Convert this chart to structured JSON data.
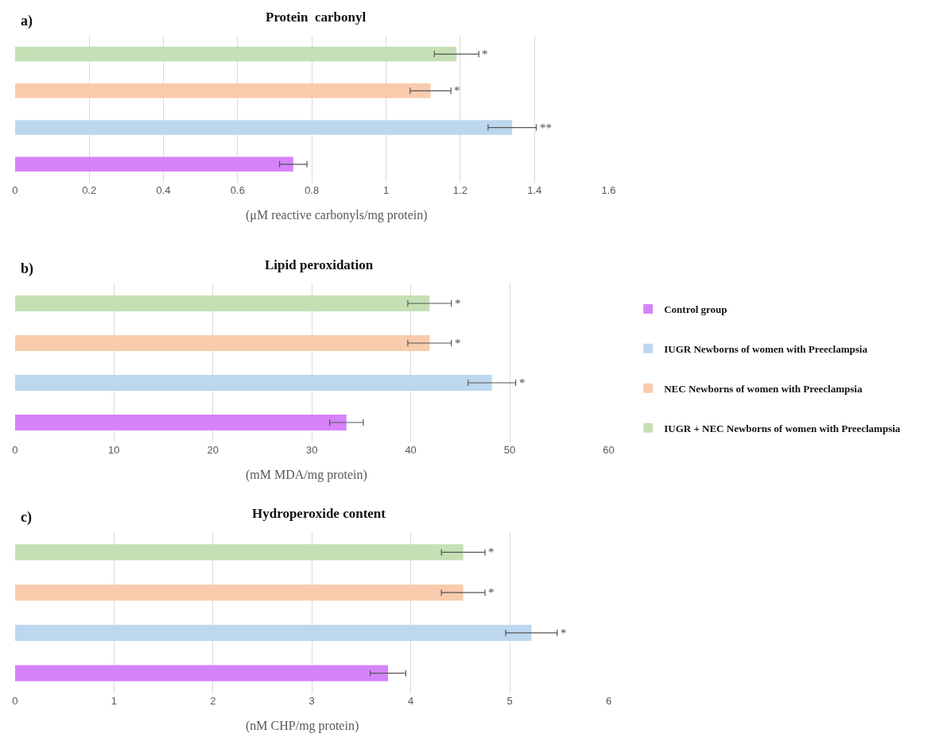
{
  "chart_data": [
    {
      "type": "bar",
      "orientation": "horizontal",
      "title": "Protein  carbonyl",
      "xlabel": "(μM reactive carbonyls/mg protein)",
      "annotations": [
        "a)"
      ],
      "categories": [
        null,
        null,
        null,
        null
      ],
      "xlim": [
        0,
        1.6
      ],
      "xticks": [
        0,
        0.2,
        0.4,
        0.6,
        0.8,
        1,
        1.2,
        1.4,
        1.6
      ],
      "grid": "x",
      "legend": "right",
      "tick_labels": "x",
      "series": [
        {
          "name": "Control group",
          "color": "#d683fa",
          "values": [
            null,
            null,
            null,
            0.75
          ],
          "errors": [
            null,
            null,
            null,
            0.037
          ],
          "value_labels": [
            null,
            null,
            null,
            null
          ]
        },
        {
          "name": "IUGR Newborns of women with Preeclampsia",
          "color": "#bdd7ee",
          "values": [
            null,
            null,
            1.34,
            null
          ],
          "errors": [
            null,
            null,
            0.065,
            null
          ],
          "value_labels": [
            null,
            null,
            "**",
            null
          ]
        },
        {
          "name": "NEC Newborns of women with Preeclampsia",
          "color": "#f8cbad",
          "values": [
            null,
            1.12,
            null,
            null
          ],
          "errors": [
            null,
            0.055,
            null,
            null
          ],
          "value_labels": [
            null,
            "*",
            null,
            null
          ]
        },
        {
          "name": "IUGR + NEC Newborns of women with Preeclampsia",
          "color": "#c5e0b4",
          "values": [
            1.19,
            null,
            null,
            null
          ],
          "errors": [
            0.06,
            null,
            null,
            null
          ],
          "value_labels": [
            "*",
            null,
            null,
            null
          ]
        }
      ]
    },
    {
      "type": "bar",
      "orientation": "horizontal",
      "title": "Lipid peroxidation",
      "xlabel": "(mM MDA/mg protein)",
      "annotations": [
        "b)"
      ],
      "categories": [
        null,
        null,
        null,
        null
      ],
      "xlim": [
        0,
        60
      ],
      "xticks": [
        0,
        10,
        20,
        30,
        40,
        50,
        60
      ],
      "grid": "x",
      "legend": false,
      "tick_labels": "x",
      "series": [
        {
          "color": "#d683fa",
          "values": [
            null,
            null,
            null,
            33.5
          ],
          "errors": [
            null,
            null,
            null,
            1.7
          ],
          "value_labels": [
            null,
            null,
            null,
            null
          ]
        },
        {
          "color": "#bdd7ee",
          "values": [
            null,
            null,
            48.2,
            null
          ],
          "errors": [
            null,
            null,
            2.4,
            null
          ],
          "value_labels": [
            null,
            null,
            "*",
            null
          ]
        },
        {
          "color": "#f8cbad",
          "values": [
            null,
            41.9,
            null,
            null
          ],
          "errors": [
            null,
            2.2,
            null,
            null
          ],
          "value_labels": [
            null,
            "*",
            null,
            null
          ]
        },
        {
          "color": "#c5e0b4",
          "values": [
            41.9,
            null,
            null,
            null
          ],
          "errors": [
            2.2,
            null,
            null,
            null
          ],
          "value_labels": [
            "*",
            null,
            null,
            null
          ]
        }
      ]
    },
    {
      "type": "bar",
      "orientation": "horizontal",
      "title": "Hydroperoxide content",
      "xlabel": "(nM CHP/mg protein)",
      "annotations": [
        "c)"
      ],
      "categories": [
        null,
        null,
        null,
        null
      ],
      "xlim": [
        0,
        6
      ],
      "xticks": [
        0,
        1,
        2,
        3,
        4,
        5,
        6
      ],
      "grid": "x",
      "legend": false,
      "tick_labels": "x",
      "series": [
        {
          "color": "#d683fa",
          "values": [
            null,
            null,
            null,
            3.77
          ],
          "errors": [
            null,
            null,
            null,
            0.18
          ],
          "value_labels": [
            null,
            null,
            null,
            null
          ]
        },
        {
          "color": "#bdd7ee",
          "values": [
            null,
            null,
            5.22,
            null
          ],
          "errors": [
            null,
            null,
            0.26,
            null
          ],
          "value_labels": [
            null,
            null,
            "*",
            null
          ]
        },
        {
          "color": "#f8cbad",
          "values": [
            null,
            4.53,
            null,
            null
          ],
          "errors": [
            null,
            0.22,
            null,
            null
          ],
          "value_labels": [
            null,
            "*",
            null,
            null
          ]
        },
        {
          "color": "#c5e0b4",
          "values": [
            4.53,
            null,
            null,
            null
          ],
          "errors": [
            0.22,
            null,
            null,
            null
          ],
          "value_labels": [
            "*",
            null,
            null,
            null
          ]
        }
      ]
    }
  ]
}
